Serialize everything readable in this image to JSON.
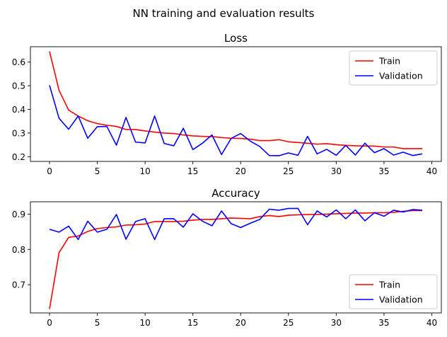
{
  "figure": {
    "suptitle": "NN training and evaluation results"
  },
  "chart_data": [
    {
      "type": "line",
      "title": "Loss",
      "xlabel": "",
      "ylabel": "",
      "x": [
        0,
        1,
        2,
        3,
        4,
        5,
        6,
        7,
        8,
        9,
        10,
        11,
        12,
        13,
        14,
        15,
        16,
        17,
        18,
        19,
        20,
        21,
        22,
        23,
        24,
        25,
        26,
        27,
        28,
        29,
        30,
        31,
        32,
        33,
        34,
        35,
        36,
        37,
        38,
        39
      ],
      "xlim": [
        -2,
        41
      ],
      "ylim": [
        0.18,
        0.665
      ],
      "xticks": [
        0,
        5,
        10,
        15,
        20,
        25,
        30,
        35,
        40
      ],
      "yticks": [
        0.2,
        0.3,
        0.4,
        0.5,
        0.6
      ],
      "ytick_labels": [
        "0.2",
        "0.3",
        "0.4",
        "0.5",
        "0.6"
      ],
      "grid": false,
      "legend_position": "top-right",
      "series": [
        {
          "name": "Train",
          "color": "#ff0000",
          "values": [
            0.645,
            0.48,
            0.397,
            0.372,
            0.352,
            0.34,
            0.333,
            0.328,
            0.315,
            0.315,
            0.309,
            0.304,
            0.3,
            0.298,
            0.292,
            0.288,
            0.286,
            0.285,
            0.281,
            0.278,
            0.277,
            0.274,
            0.268,
            0.268,
            0.272,
            0.263,
            0.26,
            0.257,
            0.253,
            0.255,
            0.251,
            0.248,
            0.246,
            0.245,
            0.245,
            0.241,
            0.241,
            0.234,
            0.234,
            0.234
          ]
        },
        {
          "name": "Validation",
          "color": "#0000ff",
          "values": [
            0.502,
            0.362,
            0.316,
            0.372,
            0.278,
            0.327,
            0.328,
            0.249,
            0.366,
            0.262,
            0.258,
            0.372,
            0.256,
            0.246,
            0.32,
            0.23,
            0.257,
            0.292,
            0.209,
            0.277,
            0.298,
            0.266,
            0.243,
            0.205,
            0.204,
            0.216,
            0.206,
            0.286,
            0.212,
            0.231,
            0.206,
            0.248,
            0.207,
            0.257,
            0.217,
            0.234,
            0.207,
            0.219,
            0.205,
            0.212
          ]
        }
      ]
    },
    {
      "type": "line",
      "title": "Accuracy",
      "xlabel": "",
      "ylabel": "",
      "x": [
        0,
        1,
        2,
        3,
        4,
        5,
        6,
        7,
        8,
        9,
        10,
        11,
        12,
        13,
        14,
        15,
        16,
        17,
        18,
        19,
        20,
        21,
        22,
        23,
        24,
        25,
        26,
        27,
        28,
        29,
        30,
        31,
        32,
        33,
        34,
        35,
        36,
        37,
        38,
        39
      ],
      "xlim": [
        -2,
        41
      ],
      "ylim": [
        0.62,
        0.935
      ],
      "xticks": [
        0,
        5,
        10,
        15,
        20,
        25,
        30,
        35,
        40
      ],
      "yticks": [
        0.7,
        0.8,
        0.9
      ],
      "ytick_labels": [
        "0.7",
        "0.8",
        "0.9"
      ],
      "grid": false,
      "legend_position": "bottom-right",
      "series": [
        {
          "name": "Train",
          "color": "#ff0000",
          "values": [
            0.631,
            0.791,
            0.834,
            0.838,
            0.851,
            0.859,
            0.862,
            0.864,
            0.869,
            0.87,
            0.872,
            0.879,
            0.879,
            0.879,
            0.88,
            0.883,
            0.885,
            0.885,
            0.887,
            0.889,
            0.888,
            0.887,
            0.893,
            0.896,
            0.893,
            0.897,
            0.898,
            0.899,
            0.899,
            0.9,
            0.901,
            0.902,
            0.903,
            0.903,
            0.904,
            0.904,
            0.905,
            0.908,
            0.91,
            0.91
          ]
        },
        {
          "name": "Validation",
          "color": "#0000ff",
          "values": [
            0.857,
            0.849,
            0.866,
            0.828,
            0.88,
            0.849,
            0.857,
            0.899,
            0.829,
            0.879,
            0.887,
            0.828,
            0.887,
            0.887,
            0.863,
            0.901,
            0.88,
            0.867,
            0.909,
            0.873,
            0.862,
            0.874,
            0.885,
            0.914,
            0.911,
            0.916,
            0.916,
            0.87,
            0.909,
            0.892,
            0.912,
            0.887,
            0.912,
            0.881,
            0.904,
            0.894,
            0.911,
            0.906,
            0.913,
            0.911
          ]
        }
      ]
    }
  ]
}
